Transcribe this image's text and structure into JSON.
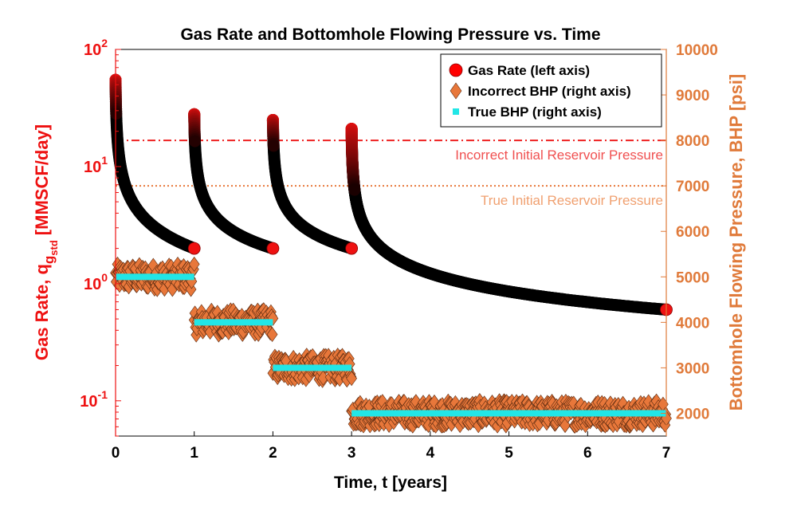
{
  "chart_data": {
    "type": "scatter",
    "title": "Gas Rate and Bottomhole Flowing Pressure vs. Time",
    "xlabel": "Time, t [years]",
    "ylabel_left": "Gas Rate, q",
    "ylabel_left_sub": "g",
    "ylabel_left_subsub": "std",
    "ylabel_left_unit": "[MMSCF/day]",
    "ylabel_right": "Bottomhole Flowing Pressure, BHP [psi]",
    "xlim": [
      0,
      7
    ],
    "x_ticks": [
      "0",
      "1",
      "2",
      "3",
      "4",
      "5",
      "6",
      "7"
    ],
    "y_left_scale": "log",
    "y_left_lim": [
      0.05,
      100
    ],
    "y_left_ticks": [
      {
        "base": "10",
        "exp": "-1"
      },
      {
        "base": "10",
        "exp": "0"
      },
      {
        "base": "10",
        "exp": "1"
      },
      {
        "base": "10",
        "exp": "2"
      }
    ],
    "y_right_lim": [
      1500,
      10000
    ],
    "y_right_ticks": [
      "2000",
      "3000",
      "4000",
      "5000",
      "6000",
      "7000",
      "8000",
      "9000",
      "10000"
    ],
    "grid": false,
    "legend_position": "top-right",
    "series": [
      {
        "name": "Gas Rate (left axis)",
        "axis": "left",
        "marker": "circle",
        "color": "#ff0000",
        "periods": [
          {
            "t_start": 0,
            "t_end": 1,
            "q_start": 55,
            "q_end": 2.0
          },
          {
            "t_start": 1,
            "t_end": 2,
            "q_start": 28,
            "q_end": 2.0
          },
          {
            "t_start": 2,
            "t_end": 3,
            "q_start": 25,
            "q_end": 2.0
          },
          {
            "t_start": 3,
            "t_end": 7,
            "q_start": 21,
            "q_end": 0.6
          }
        ]
      },
      {
        "name": "Incorrect BHP (right axis)",
        "axis": "right",
        "marker": "diamond",
        "color": "#e8773a",
        "noise_psi": 280,
        "steps": [
          {
            "t_start": 0,
            "t_end": 1,
            "bhp": 5000
          },
          {
            "t_start": 1,
            "t_end": 2,
            "bhp": 4000
          },
          {
            "t_start": 2,
            "t_end": 3,
            "bhp": 3000
          },
          {
            "t_start": 3,
            "t_end": 7,
            "bhp": 2000
          }
        ]
      },
      {
        "name": "True BHP (right axis)",
        "axis": "right",
        "marker": "square",
        "color": "#22e6e6",
        "steps": [
          {
            "t_start": 0,
            "t_end": 1,
            "bhp": 5000
          },
          {
            "t_start": 1,
            "t_end": 2,
            "bhp": 4000
          },
          {
            "t_start": 2,
            "t_end": 3,
            "bhp": 3000
          },
          {
            "t_start": 3,
            "t_end": 7,
            "bhp": 2000
          }
        ]
      }
    ],
    "reference_lines": [
      {
        "label": "Incorrect Initial Reservoir Pressure",
        "axis": "right",
        "value": 8000,
        "style": "dash-dot",
        "color": "#ee2222"
      },
      {
        "label": "True Initial Reservoir Pressure",
        "axis": "right",
        "value": 7000,
        "style": "dotted",
        "color": "#e8773a"
      }
    ]
  }
}
